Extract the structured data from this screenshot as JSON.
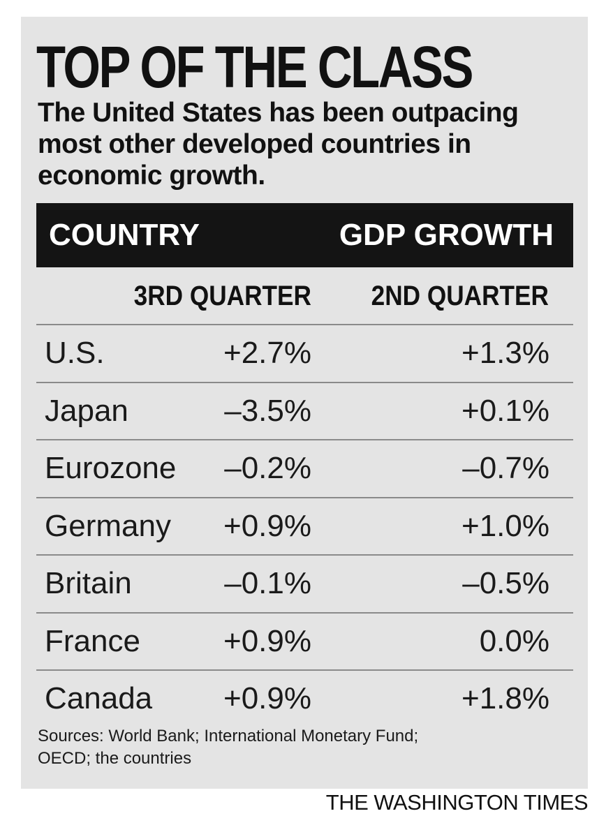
{
  "chart_data": {
    "type": "table",
    "title": "TOP OF THE CLASS",
    "subtitle": "The United States has been outpacing most other developed countries in economic growth.",
    "header": {
      "country_label": "COUNTRY",
      "metric_label": "GDP GROWTH"
    },
    "columns": [
      "3RD QUARTER",
      "2ND QUARTER"
    ],
    "rows": [
      {
        "country": "U.S.",
        "q3": "+2.7%",
        "q2": "+1.3%"
      },
      {
        "country": "Japan",
        "q3": "–3.5%",
        "q2": "+0.1%"
      },
      {
        "country": "Eurozone",
        "q3": "–0.2%",
        "q2": "–0.7%"
      },
      {
        "country": "Germany",
        "q3": "+0.9%",
        "q2": "+1.0%"
      },
      {
        "country": "Britain",
        "q3": "–0.1%",
        "q2": "–0.5%"
      },
      {
        "country": "France",
        "q3": "+0.9%",
        "q2": "0.0%"
      },
      {
        "country": "Canada",
        "q3": "+0.9%",
        "q2": "+1.8%"
      }
    ],
    "values": {
      "q3": [
        2.7,
        -3.5,
        -0.2,
        0.9,
        -0.1,
        0.9,
        0.9
      ],
      "q2": [
        1.3,
        0.1,
        -0.7,
        1.0,
        -0.5,
        0.0,
        1.8
      ]
    },
    "sources": "Sources: World Bank; International Monetary Fund; OECD; the countries",
    "credit": "THE WASHINGTON TIMES"
  },
  "colors": {
    "panel_background": "#e4e4e4",
    "header_bar": "#141414",
    "header_text": "#ffffff",
    "rule": "#8a8a8a"
  }
}
